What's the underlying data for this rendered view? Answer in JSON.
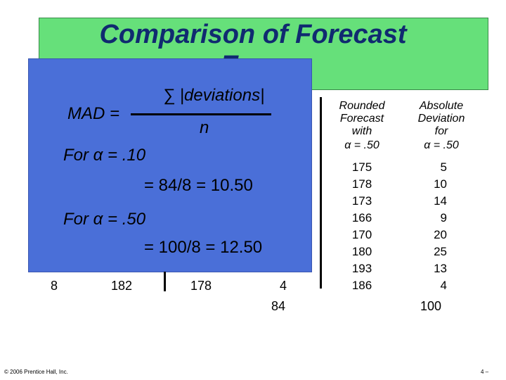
{
  "slide": {
    "title_line1": "Comparison of Forecast",
    "title_line2": "Error"
  },
  "mad": {
    "label": "MAD =",
    "numerator": "∑ |deviations|",
    "denominator": "n",
    "alpha1_line": "For α = .10",
    "alpha1_calc": "= 84/8 = 10.50",
    "alpha2_line": "For α = .50",
    "alpha2_calc": "= 100/8 = 12.50"
  },
  "last_row": {
    "quarter": "8",
    "actual": "182",
    "forecast": "178",
    "deviation": "4"
  },
  "totals": {
    "deviation_010": "84",
    "deviation_050": "100"
  },
  "table": {
    "rounded_header": [
      "Rounded",
      "Forecast",
      "with",
      "α = .50"
    ],
    "absdev_header": [
      "Absolute",
      "Deviation",
      "for",
      "α = .50"
    ],
    "rounded_values": [
      "175",
      "178",
      "173",
      "166",
      "170",
      "180",
      "193",
      "186"
    ],
    "absdev_values": [
      "5",
      "10",
      "14",
      "9",
      "20",
      "25",
      "13",
      "4"
    ]
  },
  "footer": {
    "copyright": "© 2006 Prentice Hall, Inc.",
    "page": "4 –"
  }
}
